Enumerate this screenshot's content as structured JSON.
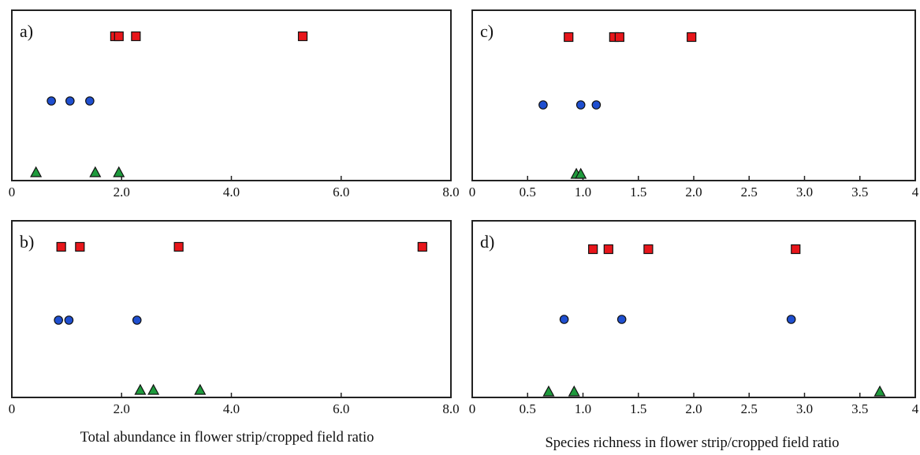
{
  "colors": {
    "squares": "#e8161b",
    "circles": "#1f4fd0",
    "triangles": "#1e9a3c",
    "frame": "#222222",
    "background": "#ffffff"
  },
  "bottom_labels": {
    "left": "Total abundance in flower strip/cropped field ratio",
    "right": "Species richness in flower strip/cropped field ratio"
  },
  "chart_data": [
    {
      "type": "scatter",
      "panel": "a)",
      "xlim": [
        0,
        8
      ],
      "xticks": [
        "0",
        "2.0",
        "4.0",
        "6.0",
        "8.0"
      ],
      "xtick_values": [
        0,
        2,
        4,
        6,
        8
      ],
      "grid": false,
      "series": [
        {
          "marker": "square",
          "row": "top",
          "x": [
            1.88,
            1.95,
            2.26,
            5.3
          ]
        },
        {
          "marker": "circle",
          "row": "middle",
          "x": [
            0.72,
            1.06,
            1.42
          ]
        },
        {
          "marker": "triangle",
          "row": "bottom",
          "x": [
            0.44,
            1.52,
            1.95
          ]
        }
      ]
    },
    {
      "type": "scatter",
      "panel": "b)",
      "xlim": [
        0,
        8
      ],
      "xticks": [
        "0",
        "2.0",
        "4.0",
        "6.0",
        "8.0"
      ],
      "xtick_values": [
        0,
        2,
        4,
        6,
        8
      ],
      "grid": false,
      "series": [
        {
          "marker": "square",
          "row": "top",
          "x": [
            0.9,
            1.24,
            3.04,
            7.48
          ]
        },
        {
          "marker": "circle",
          "row": "middle",
          "x": [
            0.85,
            1.04,
            2.28
          ]
        },
        {
          "marker": "triangle",
          "row": "bottom",
          "x": [
            2.34,
            2.58,
            3.43
          ]
        }
      ]
    },
    {
      "type": "scatter",
      "panel": "c)",
      "xlim": [
        0,
        4
      ],
      "xticks": [
        "0",
        "0.5",
        "1.0",
        "1.5",
        "2.0",
        "2.5",
        "3.0",
        "3.5",
        "4"
      ],
      "xtick_values": [
        0,
        0.5,
        1,
        1.5,
        2,
        2.5,
        3,
        3.5,
        4
      ],
      "grid": false,
      "series": [
        {
          "marker": "square",
          "row": "top",
          "x": [
            0.87,
            1.28,
            1.33,
            1.98
          ]
        },
        {
          "marker": "circle",
          "row": "middle",
          "x": [
            0.64,
            0.98,
            1.12
          ]
        },
        {
          "marker": "triangle",
          "row": "bottom",
          "x": [
            0.94,
            0.98
          ]
        }
      ]
    },
    {
      "type": "scatter",
      "panel": "d)",
      "xlim": [
        0,
        4
      ],
      "xticks": [
        "0",
        "0.5",
        "1.0",
        "1.5",
        "2.0",
        "2.5",
        "3.0",
        "3.5",
        "4"
      ],
      "xtick_values": [
        0,
        0.5,
        1,
        1.5,
        2,
        2.5,
        3,
        3.5,
        4
      ],
      "grid": false,
      "series": [
        {
          "marker": "square",
          "row": "top",
          "x": [
            1.09,
            1.23,
            1.59,
            2.92
          ]
        },
        {
          "marker": "circle",
          "row": "middle",
          "x": [
            0.83,
            1.35,
            2.88
          ]
        },
        {
          "marker": "triangle",
          "row": "bottom",
          "x": [
            0.69,
            0.92,
            3.68
          ]
        }
      ]
    }
  ]
}
